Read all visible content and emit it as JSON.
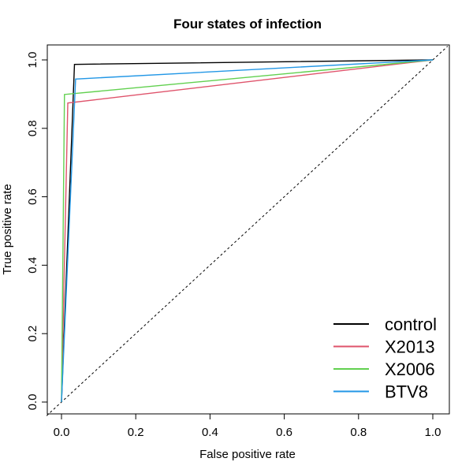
{
  "chart_data": {
    "type": "line",
    "title": "Four states of infection",
    "xlabel": "False positive rate",
    "ylabel": "True positive rate",
    "xlim": [
      0,
      1
    ],
    "ylim": [
      0,
      1
    ],
    "xticks": [
      "0.0",
      "0.2",
      "0.4",
      "0.6",
      "0.8",
      "1.0"
    ],
    "yticks": [
      "0.0",
      "0.2",
      "0.4",
      "0.6",
      "0.8",
      "1.0"
    ],
    "grid": false,
    "legend_position": "bottom-right",
    "reference_line": {
      "style": "dashed",
      "color": "#000000",
      "from": [
        0,
        0
      ],
      "to": [
        1,
        1
      ]
    },
    "series": [
      {
        "name": "control",
        "color": "#000000",
        "x": [
          0,
          0.035,
          1
        ],
        "y": [
          0,
          0.987,
          1
        ]
      },
      {
        "name": "X2013",
        "color": "#DF536B",
        "x": [
          0,
          0.017,
          1
        ],
        "y": [
          0,
          0.874,
          1
        ]
      },
      {
        "name": "X2006",
        "color": "#61D04F",
        "x": [
          0,
          0.008,
          1
        ],
        "y": [
          0,
          0.899,
          1
        ]
      },
      {
        "name": "BTV8",
        "color": "#2297E6",
        "x": [
          0,
          0.038,
          1
        ],
        "y": [
          0,
          0.944,
          1
        ]
      }
    ]
  }
}
